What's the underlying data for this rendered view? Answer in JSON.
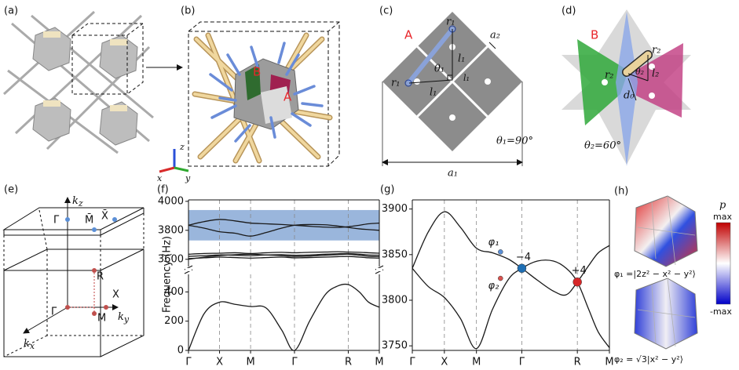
{
  "panels": {
    "a": {
      "label": "(a)"
    },
    "b": {
      "label": "(b)",
      "site_a": "A",
      "site_b": "B",
      "axis_x": "x",
      "axis_y": "y",
      "axis_z": "z"
    },
    "c": {
      "label": "(c)",
      "site": "A",
      "r_top": "r₁",
      "r_left": "r₁",
      "a2": "a₂",
      "theta": "θ₁",
      "l_vert": "l₁",
      "l_low": "l₁",
      "l_side": "l₁",
      "angle": "θ₁=90°",
      "a1": "a₁"
    },
    "d": {
      "label": "(d)",
      "site": "B",
      "r_top": "r₂",
      "r_left": "r₂",
      "theta": "θ₂",
      "l": "l₂",
      "d0": "d₀",
      "angle": "θ₂=60°"
    },
    "e": {
      "label": "(e)",
      "kz": {
        "text": "k",
        "sub": "z"
      },
      "gamma_bar": "Γ̄",
      "m_bar": "M̄",
      "x_bar": "X̄",
      "r": "R",
      "x": "X",
      "gamma": "Γ",
      "m": "M",
      "kx": {
        "text": "k",
        "sub": "x"
      },
      "ky": {
        "text": "k",
        "sub": "y"
      }
    },
    "f": {
      "label": "(f)"
    },
    "g": {
      "label": "(g)"
    },
    "h": {
      "label": "(h)",
      "p": "p",
      "max": "max",
      "min": "-max",
      "phi1": "φ₁ =|2z² − x² − y²⟩",
      "phi2": "φ₂ = √3|x² − y²⟩"
    }
  },
  "chart_data": [
    {
      "type": "line",
      "ylabel": "Frequency (Hz)",
      "x": [
        0,
        0.5,
        1,
        1.5,
        2,
        2.5,
        3,
        3.414,
        3.9,
        4.4,
        4.8,
        5.146,
        5.5,
        5.8,
        6.146
      ],
      "xlim": [
        0,
        6.146
      ],
      "ylim": [
        3550,
        4010
      ],
      "yticks": [
        3600,
        3800,
        4000
      ],
      "band": {
        "range": [
          3730,
          3940
        ],
        "color": "#9ab6dc"
      },
      "series": [
        {
          "color": "#1a1a1a",
          "values": [
            3835,
            3860,
            3875,
            3865,
            3850,
            3845,
            3840,
            3835,
            3828,
            3822,
            3820,
            3825,
            3835,
            3845,
            3850
          ]
        },
        {
          "color": "#1a1a1a",
          "values": [
            3835,
            3815,
            3790,
            3780,
            3760,
            3785,
            3815,
            3835,
            3840,
            3838,
            3830,
            3820,
            3810,
            3805,
            3800
          ]
        },
        {
          "color": "#1a1a1a",
          "values": [
            3605,
            3610,
            3615,
            3612,
            3608,
            3612,
            3615,
            3610,
            3612,
            3615,
            3618,
            3620,
            3615,
            3610,
            3608
          ]
        },
        {
          "color": "#1a1a1a",
          "values": [
            3620,
            3625,
            3630,
            3628,
            3625,
            3630,
            3632,
            3628,
            3630,
            3635,
            3638,
            3640,
            3635,
            3630,
            3628
          ]
        },
        {
          "color": "#1a1a1a",
          "values": [
            3635,
            3640,
            3642,
            3645,
            3640,
            3645,
            3648,
            3645,
            3648,
            3650,
            3652,
            3650,
            3648,
            3645,
            3642
          ]
        },
        {
          "color": "#1a1a1a",
          "values": [
            3600,
            3615,
            3625,
            3632,
            3635,
            3630,
            3625,
            3620,
            3622,
            3628,
            3632,
            3635,
            3628,
            3620,
            3618
          ]
        }
      ]
    },
    {
      "type": "line",
      "x": [
        0,
        0.5,
        1,
        1.5,
        2,
        2.5,
        3,
        3.414,
        3.9,
        4.4,
        4.8,
        5.146,
        5.5,
        5.8,
        6.146
      ],
      "xlim": [
        0,
        6.146
      ],
      "ylim": [
        0,
        520
      ],
      "yticks": [
        0,
        200,
        400
      ],
      "xticks": [
        {
          "value": 0,
          "label": "Γ"
        },
        {
          "value": 1,
          "label": "X"
        },
        {
          "value": 2,
          "label": "M"
        },
        {
          "value": 3.414,
          "label": "Γ"
        },
        {
          "value": 5.146,
          "label": "R"
        },
        {
          "value": 6.146,
          "label": "M"
        }
      ],
      "series": [
        {
          "color": "#1a1a1a",
          "values": [
            0,
            250,
            330,
            315,
            300,
            290,
            140,
            0,
            200,
            380,
            440,
            450,
            400,
            330,
            295
          ]
        }
      ]
    },
    {
      "type": "line",
      "x": [
        0,
        0.5,
        1,
        1.5,
        2,
        2.5,
        3,
        3.414,
        3.9,
        4.4,
        4.8,
        5.146,
        5.5,
        5.8,
        6.146
      ],
      "xlim": [
        0,
        6.146
      ],
      "ylim": [
        3745,
        3910
      ],
      "yticks": [
        3750,
        3800,
        3850,
        3900
      ],
      "xticks": [
        {
          "value": 0,
          "label": "Γ"
        },
        {
          "value": 1,
          "label": "X"
        },
        {
          "value": 2,
          "label": "M"
        },
        {
          "value": 3.414,
          "label": "Γ"
        },
        {
          "value": 5.146,
          "label": "R"
        },
        {
          "value": 6.146,
          "label": "M"
        }
      ],
      "series": [
        {
          "color": "#1a1a1a",
          "values": [
            3835,
            3875,
            3897,
            3880,
            3857,
            3852,
            3845,
            3835,
            3822,
            3810,
            3806,
            3820,
            3838,
            3852,
            3860
          ]
        },
        {
          "color": "#1a1a1a",
          "values": [
            3835,
            3815,
            3803,
            3780,
            3747,
            3790,
            3823,
            3835,
            3843,
            3843,
            3835,
            3820,
            3790,
            3765,
            3748
          ]
        }
      ],
      "points": [
        {
          "x": 2.75,
          "y": 3853,
          "color": "#5b8fd6",
          "r": 3,
          "label": "φ₁"
        },
        {
          "x": 2.75,
          "y": 3824,
          "color": "#d9534f",
          "r": 3,
          "label": "φ₂"
        },
        {
          "x": 3.414,
          "y": 3835,
          "color": "#1f6fb4",
          "r": 5.5,
          "label": "−4"
        },
        {
          "x": 5.146,
          "y": 3820,
          "color": "#d62728",
          "r": 5.5,
          "label": "+4"
        }
      ]
    }
  ]
}
